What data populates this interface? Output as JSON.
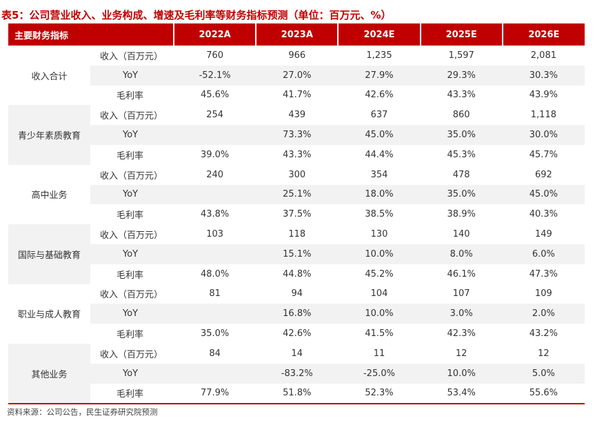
{
  "title": "表5：公司营业收入、业务构成、增速及毛利率等财务指标预测（单位：百万元、%）",
  "header": {
    "label": "主要财务指标",
    "years": [
      "2022A",
      "2023A",
      "2024E",
      "2025E",
      "2026E"
    ]
  },
  "sections": [
    {
      "name": "收入合计",
      "rows": [
        {
          "metric": "收入（百万元）",
          "values": [
            "760",
            "966",
            "1,235",
            "1,597",
            "2,081"
          ]
        },
        {
          "metric": "YoY",
          "values": [
            "-52.1%",
            "27.0%",
            "27.9%",
            "29.3%",
            "30.3%"
          ]
        },
        {
          "metric": "毛利率",
          "values": [
            "45.6%",
            "41.7%",
            "42.6%",
            "43.3%",
            "43.9%"
          ]
        }
      ]
    },
    {
      "name": "青少年素质教育",
      "rows": [
        {
          "metric": "收入（百万元）",
          "values": [
            "254",
            "439",
            "637",
            "860",
            "1,118"
          ]
        },
        {
          "metric": "YoY",
          "values": [
            "",
            "73.3%",
            "45.0%",
            "35.0%",
            "30.0%"
          ]
        },
        {
          "metric": "毛利率",
          "values": [
            "39.0%",
            "43.3%",
            "44.4%",
            "45.3%",
            "45.7%"
          ]
        }
      ]
    },
    {
      "name": "高中业务",
      "rows": [
        {
          "metric": "收入（百万元）",
          "values": [
            "240",
            "300",
            "354",
            "478",
            "692"
          ]
        },
        {
          "metric": "YoY",
          "values": [
            "",
            "25.1%",
            "18.0%",
            "35.0%",
            "45.0%"
          ]
        },
        {
          "metric": "毛利率",
          "values": [
            "43.8%",
            "37.5%",
            "38.5%",
            "38.9%",
            "40.3%"
          ]
        }
      ]
    },
    {
      "name": "国际与基础教育",
      "rows": [
        {
          "metric": "收入（百万元）",
          "values": [
            "103",
            "118",
            "130",
            "140",
            "149"
          ]
        },
        {
          "metric": "YoY",
          "values": [
            "",
            "15.1%",
            "10.0%",
            "8.0%",
            "6.0%"
          ]
        },
        {
          "metric": "毛利率",
          "values": [
            "48.0%",
            "44.8%",
            "45.2%",
            "46.1%",
            "47.3%"
          ]
        }
      ]
    },
    {
      "name": "职业与成人教育",
      "rows": [
        {
          "metric": "收入（百万元）",
          "values": [
            "81",
            "94",
            "104",
            "107",
            "109"
          ]
        },
        {
          "metric": "YoY",
          "values": [
            "",
            "16.8%",
            "10.0%",
            "3.0%",
            "2.0%"
          ]
        },
        {
          "metric": "毛利率",
          "values": [
            "35.0%",
            "42.6%",
            "41.5%",
            "42.3%",
            "43.2%"
          ]
        }
      ]
    },
    {
      "name": "其他业务",
      "rows": [
        {
          "metric": "收入（百万元）",
          "values": [
            "84",
            "14",
            "11",
            "12",
            "12"
          ]
        },
        {
          "metric": "YoY",
          "values": [
            "",
            "-83.2%",
            "-25.0%",
            "10.0%",
            "5.0%"
          ]
        },
        {
          "metric": "毛利率",
          "values": [
            "77.9%",
            "51.8%",
            "52.3%",
            "53.4%",
            "55.6%"
          ]
        }
      ]
    }
  ],
  "source": "资料来源：公司公告，民生证券研究院预测",
  "colors": {
    "accent": "#c00000",
    "stripe": "#f2f2f2"
  }
}
